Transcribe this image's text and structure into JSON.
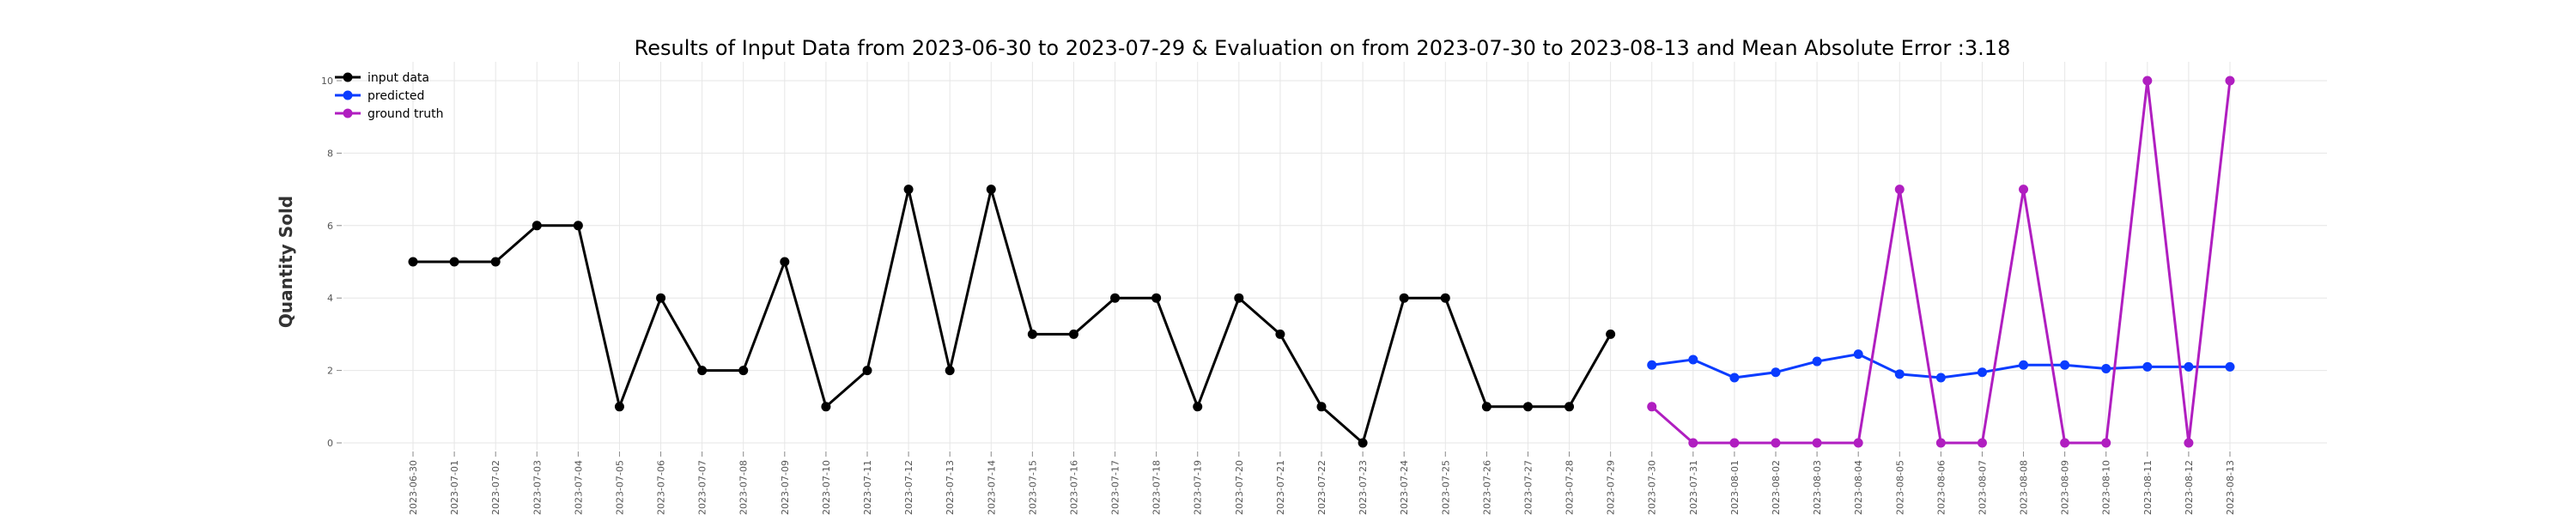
{
  "chart_data": {
    "type": "line",
    "title": "Results of Input Data from 2023-06-30 to 2023-07-29 & Evaluation on from 2023-07-30 to 2023-08-13 and Mean Absolute Error  :3.18",
    "xlabel": "",
    "ylabel": "Quantity Sold",
    "ylim": [
      0,
      10
    ],
    "yticks": [
      0,
      2,
      4,
      6,
      8,
      10
    ],
    "grid": true,
    "legend_position": "top-left",
    "x_tick_labels": [
      "2023-06-30",
      "2023-07-01",
      "2023-07-02",
      "2023-07-03",
      "2023-07-04",
      "2023-07-05",
      "2023-07-06",
      "2023-07-07",
      "2023-07-08",
      "2023-07-09",
      "2023-07-10",
      "2023-07-11",
      "2023-07-12",
      "2023-07-13",
      "2023-07-14",
      "2023-07-15",
      "2023-07-16",
      "2023-07-17",
      "2023-07-18",
      "2023-07-19",
      "2023-07-20",
      "2023-07-21",
      "2023-07-22",
      "2023-07-23",
      "2023-07-24",
      "2023-07-25",
      "2023-07-26",
      "2023-07-27",
      "2023-07-28",
      "2023-07-29",
      "2023-07-30",
      "2023-07-31",
      "2023-08-01",
      "2023-08-02",
      "2023-08-03",
      "2023-08-04",
      "2023-08-05",
      "2023-08-06",
      "2023-08-07",
      "2023-08-08",
      "2023-08-09",
      "2023-08-10",
      "2023-08-11",
      "2023-08-12",
      "2023-08-13"
    ],
    "series": [
      {
        "name": "input data",
        "color": "#000000",
        "x": [
          "2023-06-30",
          "2023-07-01",
          "2023-07-02",
          "2023-07-03",
          "2023-07-04",
          "2023-07-05",
          "2023-07-06",
          "2023-07-07",
          "2023-07-08",
          "2023-07-09",
          "2023-07-10",
          "2023-07-11",
          "2023-07-12",
          "2023-07-13",
          "2023-07-14",
          "2023-07-15",
          "2023-07-16",
          "2023-07-17",
          "2023-07-18",
          "2023-07-19",
          "2023-07-20",
          "2023-07-21",
          "2023-07-22",
          "2023-07-23",
          "2023-07-24",
          "2023-07-25",
          "2023-07-26",
          "2023-07-27",
          "2023-07-28",
          "2023-07-29"
        ],
        "values": [
          5,
          5,
          5,
          6,
          6,
          1,
          4,
          2,
          2,
          5,
          1,
          2,
          7,
          2,
          7,
          3,
          3,
          4,
          4,
          1,
          4,
          3,
          1,
          0,
          4,
          4,
          1,
          1,
          1,
          3
        ]
      },
      {
        "name": "predicted",
        "color": "#0a3cff",
        "x": [
          "2023-07-30",
          "2023-07-31",
          "2023-08-01",
          "2023-08-02",
          "2023-08-03",
          "2023-08-04",
          "2023-08-05",
          "2023-08-06",
          "2023-08-07",
          "2023-08-08",
          "2023-08-09",
          "2023-08-10",
          "2023-08-11",
          "2023-08-12",
          "2023-08-13"
        ],
        "values": [
          2.15,
          2.3,
          1.8,
          1.95,
          2.25,
          2.45,
          1.9,
          1.8,
          1.95,
          2.15,
          2.15,
          2.05,
          2.1,
          2.1,
          2.1
        ]
      },
      {
        "name": "ground truth",
        "color": "#b01ec0",
        "x": [
          "2023-07-30",
          "2023-07-31",
          "2023-08-01",
          "2023-08-02",
          "2023-08-03",
          "2023-08-04",
          "2023-08-05",
          "2023-08-06",
          "2023-08-07",
          "2023-08-08",
          "2023-08-09",
          "2023-08-10",
          "2023-08-11",
          "2023-08-12",
          "2023-08-13"
        ],
        "values": [
          1,
          0,
          0,
          0,
          0,
          0,
          7,
          0,
          0,
          7,
          0,
          0,
          10,
          0,
          10
        ]
      }
    ]
  }
}
